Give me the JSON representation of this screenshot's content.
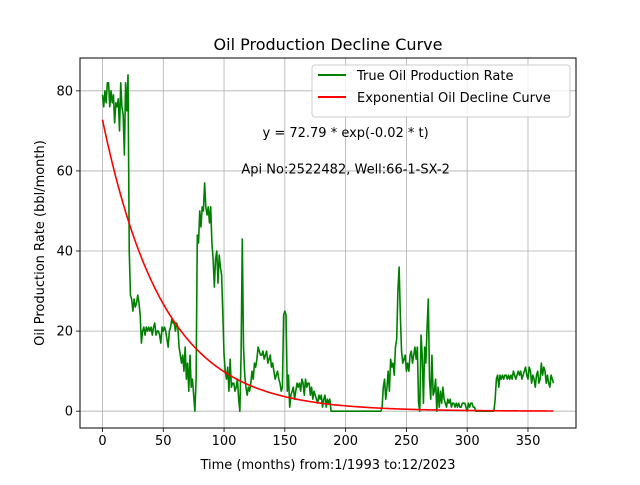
{
  "chart_data": {
    "type": "line",
    "title": "Oil Production Decline Curve",
    "xlabel": "Time (months) from:1/1993 to:12/2023",
    "ylabel": "Oil Production Rate (bbl/month)",
    "xlim": [
      -18.5,
      389.5
    ],
    "ylim": [
      -4.2,
      88.2
    ],
    "xticks": [
      0,
      50,
      100,
      150,
      200,
      250,
      300,
      350
    ],
    "yticks": [
      0,
      20,
      40,
      60,
      80
    ],
    "grid": true,
    "legend_position": "top-right",
    "annotations": [
      {
        "text": "y = 72.79 * exp(-0.02 * t)",
        "x": 200,
        "y": 69.6
      },
      {
        "text": "Api No:2522482, Well:66-1-SX-2",
        "x": 200,
        "y": 60.5
      }
    ],
    "series": [
      {
        "name": "True Oil Production Rate",
        "color": "#008000",
        "points": [
          [
            0,
            79
          ],
          [
            1,
            76
          ],
          [
            2,
            80
          ],
          [
            3,
            77
          ],
          [
            4,
            82
          ],
          [
            5,
            82
          ],
          [
            6,
            76
          ],
          [
            7,
            80
          ],
          [
            8,
            77
          ],
          [
            9,
            79
          ],
          [
            10,
            72
          ],
          [
            11,
            77
          ],
          [
            12,
            76
          ],
          [
            13,
            78
          ],
          [
            14,
            70
          ],
          [
            15,
            82
          ],
          [
            16,
            76
          ],
          [
            17,
            74
          ],
          [
            18,
            64
          ],
          [
            19,
            82
          ],
          [
            20,
            75
          ],
          [
            21,
            84
          ],
          [
            22,
            40
          ],
          [
            23,
            29
          ],
          [
            24,
            28
          ],
          [
            25,
            25
          ],
          [
            26,
            28
          ],
          [
            27,
            26
          ],
          [
            28,
            27
          ],
          [
            29,
            29
          ],
          [
            30,
            27
          ],
          [
            31,
            24
          ],
          [
            32,
            17
          ],
          [
            33,
            20
          ],
          [
            34,
            21
          ],
          [
            35,
            19
          ],
          [
            36,
            21
          ],
          [
            37,
            20
          ],
          [
            38,
            21
          ],
          [
            39,
            20
          ],
          [
            40,
            21
          ],
          [
            41,
            19
          ],
          [
            42,
            21
          ],
          [
            43,
            22
          ],
          [
            44,
            19
          ],
          [
            45,
            20
          ],
          [
            46,
            20
          ],
          [
            47,
            19
          ],
          [
            48,
            17
          ],
          [
            49,
            21
          ],
          [
            50,
            20
          ],
          [
            51,
            21
          ],
          [
            52,
            20
          ],
          [
            53,
            18
          ],
          [
            54,
            16
          ],
          [
            55,
            20
          ],
          [
            56,
            21
          ],
          [
            57,
            23
          ],
          [
            58,
            22
          ],
          [
            59,
            22
          ],
          [
            60,
            20
          ],
          [
            61,
            22
          ],
          [
            62,
            21
          ],
          [
            63,
            16
          ],
          [
            64,
            14
          ],
          [
            65,
            12
          ],
          [
            66,
            14
          ],
          [
            67,
            10
          ],
          [
            68,
            16
          ],
          [
            69,
            8
          ],
          [
            70,
            12
          ],
          [
            71,
            5
          ],
          [
            72,
            14
          ],
          [
            73,
            6
          ],
          [
            74,
            8
          ],
          [
            75,
            4
          ],
          [
            76,
            0
          ],
          [
            77,
            8
          ],
          [
            78,
            44
          ],
          [
            79,
            42
          ],
          [
            80,
            50
          ],
          [
            81,
            46
          ],
          [
            82,
            51
          ],
          [
            83,
            50
          ],
          [
            84,
            57
          ],
          [
            85,
            51
          ],
          [
            86,
            49
          ],
          [
            87,
            51
          ],
          [
            88,
            47
          ],
          [
            89,
            51
          ],
          [
            90,
            42
          ],
          [
            91,
            38
          ],
          [
            92,
            31
          ],
          [
            93,
            38
          ],
          [
            94,
            40
          ],
          [
            95,
            32
          ],
          [
            96,
            39
          ],
          [
            97,
            36
          ],
          [
            98,
            34
          ],
          [
            99,
            24
          ],
          [
            100,
            14
          ],
          [
            101,
            10
          ],
          [
            102,
            8
          ],
          [
            103,
            11
          ],
          [
            104,
            5
          ],
          [
            105,
            13
          ],
          [
            106,
            6
          ],
          [
            107,
            7
          ],
          [
            108,
            7
          ],
          [
            109,
            5
          ],
          [
            110,
            6
          ],
          [
            111,
            8
          ],
          [
            112,
            3
          ],
          [
            113,
            0
          ],
          [
            114,
            14
          ],
          [
            115,
            43
          ],
          [
            116,
            16
          ],
          [
            117,
            9
          ],
          [
            118,
            6
          ],
          [
            119,
            4
          ],
          [
            120,
            6
          ],
          [
            121,
            5
          ],
          [
            122,
            7
          ],
          [
            123,
            10
          ],
          [
            124,
            8
          ],
          [
            125,
            12
          ],
          [
            126,
            11
          ],
          [
            127,
            13
          ],
          [
            128,
            16
          ],
          [
            129,
            15
          ],
          [
            130,
            14
          ],
          [
            131,
            14
          ],
          [
            132,
            15
          ],
          [
            133,
            13
          ],
          [
            134,
            14
          ],
          [
            135,
            15
          ],
          [
            136,
            12
          ],
          [
            137,
            13
          ],
          [
            138,
            14
          ],
          [
            139,
            11
          ],
          [
            140,
            12
          ],
          [
            141,
            10
          ],
          [
            142,
            8
          ],
          [
            143,
            9
          ],
          [
            144,
            10
          ],
          [
            145,
            8
          ],
          [
            146,
            7
          ],
          [
            147,
            5
          ],
          [
            148,
            6
          ],
          [
            149,
            24
          ],
          [
            150,
            25
          ],
          [
            151,
            24
          ],
          [
            152,
            5
          ],
          [
            153,
            9
          ],
          [
            154,
            1
          ],
          [
            155,
            4
          ],
          [
            156,
            5
          ],
          [
            157,
            6
          ],
          [
            158,
            3
          ],
          [
            159,
            5
          ],
          [
            160,
            7
          ],
          [
            161,
            6
          ],
          [
            162,
            7
          ],
          [
            163,
            5
          ],
          [
            164,
            8
          ],
          [
            165,
            7
          ],
          [
            166,
            4
          ],
          [
            167,
            8
          ],
          [
            168,
            6
          ],
          [
            169,
            7
          ],
          [
            170,
            7
          ],
          [
            171,
            4
          ],
          [
            172,
            6
          ],
          [
            173,
            3
          ],
          [
            174,
            5
          ],
          [
            175,
            4
          ],
          [
            176,
            3
          ],
          [
            177,
            2
          ],
          [
            178,
            4
          ],
          [
            179,
            3
          ],
          [
            180,
            4
          ],
          [
            181,
            1
          ],
          [
            182,
            3
          ],
          [
            183,
            4
          ],
          [
            184,
            1
          ],
          [
            185,
            3
          ],
          [
            186,
            2
          ],
          [
            187,
            3
          ],
          [
            188,
            0
          ],
          [
            195,
            0
          ],
          [
            200,
            0
          ],
          [
            205,
            0
          ],
          [
            210,
            0
          ],
          [
            215,
            0
          ],
          [
            220,
            0
          ],
          [
            225,
            0
          ],
          [
            229,
            0
          ],
          [
            230,
            1
          ],
          [
            231,
            6
          ],
          [
            232,
            8
          ],
          [
            233,
            3
          ],
          [
            234,
            6
          ],
          [
            235,
            10
          ],
          [
            236,
            5
          ],
          [
            237,
            13
          ],
          [
            238,
            11
          ],
          [
            239,
            12
          ],
          [
            240,
            9
          ],
          [
            241,
            16
          ],
          [
            242,
            18
          ],
          [
            243,
            30
          ],
          [
            244,
            36
          ],
          [
            245,
            24
          ],
          [
            246,
            15
          ],
          [
            247,
            12
          ],
          [
            248,
            13
          ],
          [
            249,
            14
          ],
          [
            250,
            10
          ],
          [
            251,
            12
          ],
          [
            252,
            10
          ],
          [
            253,
            14
          ],
          [
            254,
            15
          ],
          [
            255,
            12
          ],
          [
            256,
            14
          ],
          [
            257,
            16
          ],
          [
            258,
            13
          ],
          [
            259,
            16
          ],
          [
            260,
            2
          ],
          [
            261,
            0
          ],
          [
            262,
            19
          ],
          [
            263,
            14
          ],
          [
            264,
            2
          ],
          [
            265,
            16
          ],
          [
            266,
            12
          ],
          [
            267,
            21
          ],
          [
            268,
            28
          ],
          [
            269,
            8
          ],
          [
            270,
            3
          ],
          [
            271,
            14
          ],
          [
            272,
            4
          ],
          [
            273,
            5
          ],
          [
            274,
            8
          ],
          [
            275,
            0
          ],
          [
            276,
            6
          ],
          [
            277,
            1
          ],
          [
            278,
            5
          ],
          [
            279,
            2
          ],
          [
            280,
            6
          ],
          [
            281,
            3
          ],
          [
            282,
            2
          ],
          [
            283,
            1
          ],
          [
            284,
            3
          ],
          [
            285,
            2
          ],
          [
            286,
            3
          ],
          [
            287,
            1
          ],
          [
            288,
            2
          ],
          [
            289,
            2
          ],
          [
            290,
            1
          ],
          [
            291,
            2
          ],
          [
            292,
            1
          ],
          [
            293,
            2
          ],
          [
            294,
            1
          ],
          [
            295,
            1
          ],
          [
            296,
            2
          ],
          [
            297,
            2
          ],
          [
            298,
            2
          ],
          [
            299,
            1
          ],
          [
            300,
            0
          ],
          [
            301,
            2
          ],
          [
            302,
            1
          ],
          [
            303,
            2
          ],
          [
            304,
            2
          ],
          [
            305,
            1
          ],
          [
            306,
            1
          ],
          [
            307,
            0
          ],
          [
            310,
            0
          ],
          [
            315,
            0
          ],
          [
            320,
            0
          ],
          [
            322,
            0
          ],
          [
            323,
            3
          ],
          [
            324,
            8
          ],
          [
            325,
            9
          ],
          [
            326,
            6
          ],
          [
            327,
            9
          ],
          [
            328,
            8
          ],
          [
            329,
            9
          ],
          [
            330,
            8
          ],
          [
            331,
            9
          ],
          [
            332,
            9
          ],
          [
            333,
            8
          ],
          [
            334,
            9
          ],
          [
            335,
            8
          ],
          [
            336,
            9
          ],
          [
            337,
            8
          ],
          [
            338,
            10
          ],
          [
            339,
            9
          ],
          [
            340,
            8
          ],
          [
            341,
            9
          ],
          [
            342,
            10
          ],
          [
            343,
            9
          ],
          [
            344,
            10
          ],
          [
            345,
            8
          ],
          [
            346,
            9
          ],
          [
            347,
            10
          ],
          [
            348,
            11
          ],
          [
            349,
            9
          ],
          [
            350,
            8
          ],
          [
            351,
            11
          ],
          [
            352,
            10
          ],
          [
            353,
            7
          ],
          [
            354,
            9
          ],
          [
            355,
            8
          ],
          [
            356,
            6
          ],
          [
            357,
            9
          ],
          [
            358,
            10
          ],
          [
            359,
            7
          ],
          [
            360,
            8
          ],
          [
            361,
            12
          ],
          [
            362,
            9
          ],
          [
            363,
            11
          ],
          [
            364,
            10
          ],
          [
            365,
            7
          ],
          [
            366,
            9
          ],
          [
            367,
            7
          ],
          [
            368,
            6
          ],
          [
            369,
            9
          ],
          [
            370,
            8
          ],
          [
            371,
            7
          ]
        ]
      },
      {
        "name": "Exponential Oil Decline Curve",
        "color": "#ff0000",
        "equation": {
          "a": 72.79,
          "b": 0.02
        },
        "x_range": [
          0,
          371
        ]
      }
    ]
  }
}
